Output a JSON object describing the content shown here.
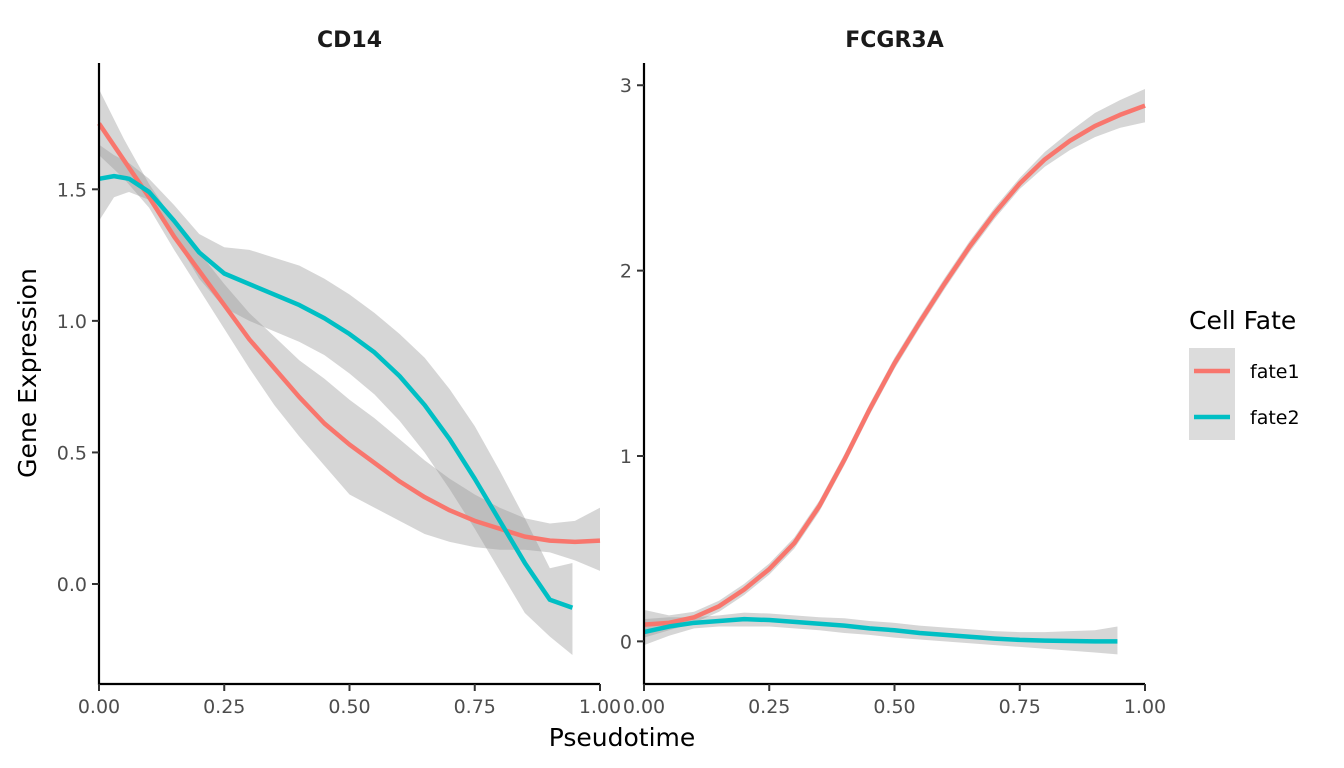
{
  "chart_data": {
    "type": "line",
    "xlabel": "Pseudotime",
    "ylabel": "Gene Expression",
    "legend": {
      "title": "Cell Fate",
      "placement": "right",
      "entries": [
        {
          "name": "fate1",
          "color": "#F8766D"
        },
        {
          "name": "fate2",
          "color": "#00BFC4"
        }
      ]
    },
    "ribbon_color": "#999999",
    "grid": false,
    "panels": [
      {
        "title": "CD14",
        "xlim": [
          0,
          1
        ],
        "ylim": [
          -0.38,
          1.98
        ],
        "x_ticks": [
          0,
          0.25,
          0.5,
          0.75,
          1
        ],
        "x_tick_labels": [
          "0.00",
          "0.25",
          "0.50",
          "0.75",
          "1.00"
        ],
        "y_ticks": [
          0,
          0.5,
          1,
          1.5
        ],
        "y_tick_labels": [
          "0.0",
          "0.5",
          "1.0",
          "1.5"
        ],
        "series": [
          {
            "name": "fate1",
            "x": [
              0,
              0.05,
              0.1,
              0.15,
              0.2,
              0.25,
              0.3,
              0.35,
              0.4,
              0.45,
              0.5,
              0.55,
              0.6,
              0.65,
              0.7,
              0.75,
              0.8,
              0.85,
              0.9,
              0.95,
              1.0
            ],
            "y": [
              1.75,
              1.61,
              1.47,
              1.32,
              1.19,
              1.06,
              0.93,
              0.82,
              0.71,
              0.61,
              0.53,
              0.46,
              0.39,
              0.33,
              0.28,
              0.24,
              0.21,
              0.18,
              0.165,
              0.16,
              0.165
            ],
            "lower": [
              1.63,
              1.54,
              1.43,
              1.27,
              1.12,
              0.97,
              0.82,
              0.68,
              0.56,
              0.45,
              0.34,
              0.29,
              0.24,
              0.19,
              0.16,
              0.14,
              0.13,
              0.13,
              0.12,
              0.09,
              0.05
            ],
            "upper": [
              1.88,
              1.69,
              1.52,
              1.38,
              1.26,
              1.14,
              1.03,
              0.94,
              0.85,
              0.78,
              0.7,
              0.63,
              0.55,
              0.47,
              0.4,
              0.34,
              0.29,
              0.25,
              0.23,
              0.24,
              0.29
            ]
          },
          {
            "name": "fate2",
            "x": [
              0,
              0.03,
              0.06,
              0.1,
              0.15,
              0.2,
              0.25,
              0.3,
              0.35,
              0.4,
              0.45,
              0.5,
              0.55,
              0.6,
              0.65,
              0.7,
              0.75,
              0.8,
              0.85,
              0.9,
              0.945
            ],
            "y": [
              1.54,
              1.55,
              1.54,
              1.49,
              1.38,
              1.26,
              1.18,
              1.14,
              1.1,
              1.06,
              1.01,
              0.95,
              0.88,
              0.79,
              0.68,
              0.55,
              0.4,
              0.24,
              0.08,
              -0.06,
              -0.09
            ],
            "lower": [
              1.38,
              1.47,
              1.49,
              1.46,
              1.32,
              1.16,
              1.05,
              1.0,
              0.96,
              0.92,
              0.87,
              0.8,
              0.72,
              0.62,
              0.5,
              0.36,
              0.21,
              0.05,
              -0.11,
              -0.2,
              -0.27
            ],
            "upper": [
              1.67,
              1.63,
              1.6,
              1.54,
              1.44,
              1.33,
              1.28,
              1.27,
              1.24,
              1.21,
              1.16,
              1.1,
              1.03,
              0.95,
              0.86,
              0.74,
              0.6,
              0.43,
              0.25,
              0.06,
              0.08
            ]
          }
        ]
      },
      {
        "title": "FCGR3A",
        "xlim": [
          0,
          1
        ],
        "ylim": [
          -0.23,
          3.12
        ],
        "x_ticks": [
          0,
          0.25,
          0.5,
          0.75,
          1
        ],
        "x_tick_labels": [
          "0.00",
          "0.25",
          "0.50",
          "0.75",
          "1.00"
        ],
        "y_ticks": [
          0,
          1,
          2,
          3
        ],
        "y_tick_labels": [
          "0",
          "1",
          "2",
          "3"
        ],
        "series": [
          {
            "name": "fate1",
            "x": [
              0,
              0.05,
              0.1,
              0.15,
              0.2,
              0.25,
              0.3,
              0.35,
              0.4,
              0.45,
              0.5,
              0.55,
              0.6,
              0.65,
              0.7,
              0.75,
              0.8,
              0.85,
              0.9,
              0.95,
              1.0
            ],
            "y": [
              0.09,
              0.1,
              0.13,
              0.19,
              0.28,
              0.39,
              0.53,
              0.73,
              0.98,
              1.25,
              1.5,
              1.72,
              1.93,
              2.13,
              2.31,
              2.47,
              2.6,
              2.7,
              2.78,
              2.84,
              2.89
            ],
            "lower": [
              0.02,
              0.06,
              0.1,
              0.16,
              0.25,
              0.36,
              0.5,
              0.7,
              0.95,
              1.22,
              1.47,
              1.69,
              1.9,
              2.1,
              2.28,
              2.44,
              2.56,
              2.65,
              2.72,
              2.77,
              2.8
            ],
            "upper": [
              0.17,
              0.14,
              0.16,
              0.22,
              0.31,
              0.42,
              0.56,
              0.76,
              1.01,
              1.28,
              1.53,
              1.75,
              1.96,
              2.16,
              2.34,
              2.5,
              2.64,
              2.75,
              2.85,
              2.92,
              2.98
            ]
          },
          {
            "name": "fate2",
            "x": [
              0,
              0.05,
              0.1,
              0.15,
              0.2,
              0.25,
              0.3,
              0.35,
              0.4,
              0.45,
              0.5,
              0.55,
              0.6,
              0.65,
              0.7,
              0.75,
              0.8,
              0.85,
              0.9,
              0.945
            ],
            "y": [
              0.05,
              0.08,
              0.1,
              0.11,
              0.12,
              0.115,
              0.105,
              0.095,
              0.085,
              0.07,
              0.06,
              0.045,
              0.035,
              0.025,
              0.015,
              0.008,
              0.004,
              0.002,
              0.0,
              0.0
            ],
            "lower": [
              -0.02,
              0.03,
              0.07,
              0.08,
              0.08,
              0.08,
              0.07,
              0.06,
              0.045,
              0.035,
              0.02,
              0.01,
              0.0,
              -0.01,
              -0.02,
              -0.03,
              -0.04,
              -0.05,
              -0.06,
              -0.07
            ],
            "upper": [
              0.12,
              0.13,
              0.13,
              0.14,
              0.155,
              0.15,
              0.14,
              0.13,
              0.125,
              0.11,
              0.1,
              0.085,
              0.075,
              0.065,
              0.055,
              0.05,
              0.05,
              0.055,
              0.06,
              0.08
            ]
          }
        ]
      }
    ]
  }
}
